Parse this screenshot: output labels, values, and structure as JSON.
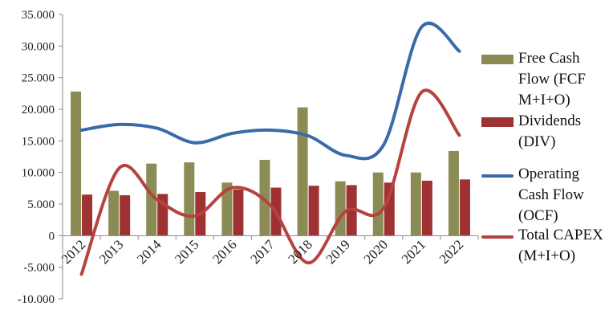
{
  "chart_data": {
    "type": "bar+line",
    "categories": [
      "2012",
      "2013",
      "2014",
      "2015",
      "2016",
      "2017",
      "2018",
      "2019",
      "2020",
      "2021",
      "2022"
    ],
    "y_ticks": [
      "35.000",
      "30.000",
      "25.000",
      "20.000",
      "15.000",
      "10.000",
      "5.000",
      "0",
      "-5.000",
      "-10.000"
    ],
    "ylim": [
      -10000,
      35000
    ],
    "grid": false,
    "legend_position": "right",
    "series": [
      {
        "name": "Free Cash Flow (FCF M+I+O)",
        "kind": "bar",
        "color": "#8B8B55",
        "values": [
          22800,
          7100,
          11400,
          11600,
          8400,
          12000,
          20300,
          8600,
          10000,
          10000,
          13400
        ]
      },
      {
        "name": "Dividends (DIV)",
        "kind": "bar",
        "color": "#9E3232",
        "values": [
          6500,
          6400,
          6600,
          6900,
          7300,
          7600,
          7900,
          8000,
          8400,
          8700,
          8900
        ]
      },
      {
        "name": "Operating Cash Flow (OCF)",
        "kind": "line",
        "color": "#3A6BA8",
        "values": [
          16700,
          17600,
          17000,
          14700,
          16200,
          16700,
          15800,
          12700,
          14400,
          33000,
          29200
        ]
      },
      {
        "name": "Total CAPEX (M+I+O)",
        "kind": "line",
        "color": "#B5433F",
        "values": [
          -6100,
          10700,
          5700,
          3100,
          7600,
          4800,
          -4300,
          3900,
          4400,
          22700,
          15900
        ]
      }
    ]
  },
  "legend": [
    {
      "label": "Free Cash Flow (FCF M+I+O)",
      "color": "#8B8B55",
      "kind": "bar"
    },
    {
      "label": "Dividends (DIV)",
      "color": "#9E3232",
      "kind": "bar"
    },
    {
      "label": "Operating Cash Flow (OCF)",
      "color": "#3A6BA8",
      "kind": "line"
    },
    {
      "label": "Total CAPEX (M+I+O)",
      "color": "#B5433F",
      "kind": "line"
    }
  ]
}
